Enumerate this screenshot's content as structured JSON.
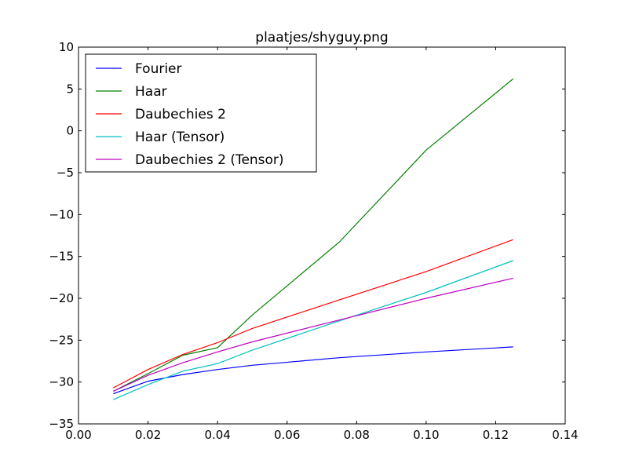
{
  "chart_data": {
    "type": "line",
    "title": "plaatjes/shyguy.png",
    "xlabel": "",
    "ylabel": "",
    "xlim": [
      0.0,
      0.14
    ],
    "ylim": [
      -35,
      10
    ],
    "xticks": [
      "0.00",
      "0.02",
      "0.04",
      "0.06",
      "0.08",
      "0.10",
      "0.12",
      "0.14"
    ],
    "yticks": [
      "10",
      "5",
      "0",
      "−5",
      "−10",
      "−15",
      "−20",
      "−25",
      "−30",
      "−35"
    ],
    "grid": false,
    "legend_position": "top-left",
    "series": [
      {
        "name": "Fourier",
        "color": "#0000ff",
        "x": [
          0.01,
          0.02,
          0.03,
          0.04,
          0.05,
          0.075,
          0.1,
          0.125
        ],
        "y": [
          -31.4,
          -29.9,
          -29.1,
          -28.5,
          -28.0,
          -27.1,
          -26.4,
          -25.8
        ]
      },
      {
        "name": "Haar",
        "color": "#008000",
        "x": [
          0.01,
          0.02,
          0.03,
          0.04,
          0.05,
          0.075,
          0.1,
          0.125
        ],
        "y": [
          -31.1,
          -29.0,
          -26.8,
          -25.9,
          -22.0,
          -13.3,
          -2.3,
          6.2
        ]
      },
      {
        "name": "Daubechies 2",
        "color": "#ff0000",
        "x": [
          0.01,
          0.02,
          0.03,
          0.04,
          0.05,
          0.075,
          0.1,
          0.125
        ],
        "y": [
          -30.7,
          -28.5,
          -26.7,
          -25.3,
          -23.6,
          -20.2,
          -16.8,
          -13.0
        ]
      },
      {
        "name": "Haar (Tensor)",
        "color": "#00bfbf",
        "x": [
          0.01,
          0.02,
          0.03,
          0.04,
          0.05,
          0.075,
          0.1,
          0.125
        ],
        "y": [
          -32.1,
          -30.3,
          -28.7,
          -27.8,
          -26.2,
          -22.7,
          -19.3,
          -15.5
        ]
      },
      {
        "name": "Daubechies 2 (Tensor)",
        "color": "#bf00bf",
        "x": [
          0.01,
          0.02,
          0.03,
          0.04,
          0.05,
          0.075,
          0.1,
          0.125
        ],
        "y": [
          -31.1,
          -29.2,
          -27.7,
          -26.4,
          -25.2,
          -22.6,
          -20.0,
          -17.6
        ]
      }
    ]
  }
}
